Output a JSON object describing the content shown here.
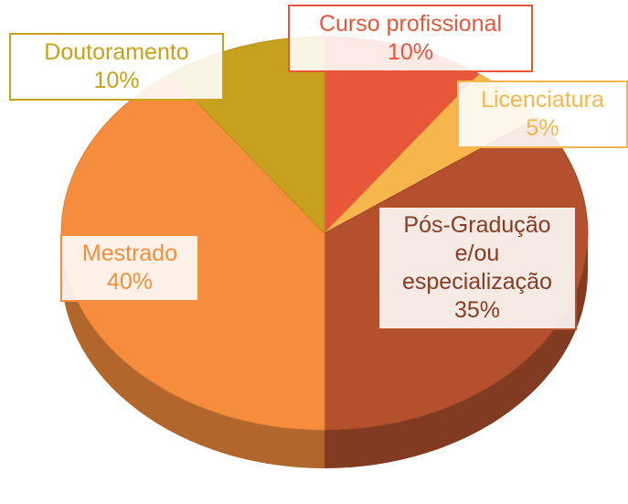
{
  "chart_data": {
    "type": "pie",
    "categories": [
      "Curso profissional",
      "Licenciatura",
      "Pós-Gradução e/ou especialização",
      "Mestrado",
      "Doutoramento"
    ],
    "values": [
      10,
      5,
      35,
      40,
      10
    ],
    "value_labels": [
      "10%",
      "5%",
      "35%",
      "40%",
      "10%"
    ],
    "colors": [
      "#e8573a",
      "#f7b64c",
      "#b4502e",
      "#f68d3c",
      "#c8a11c"
    ]
  }
}
